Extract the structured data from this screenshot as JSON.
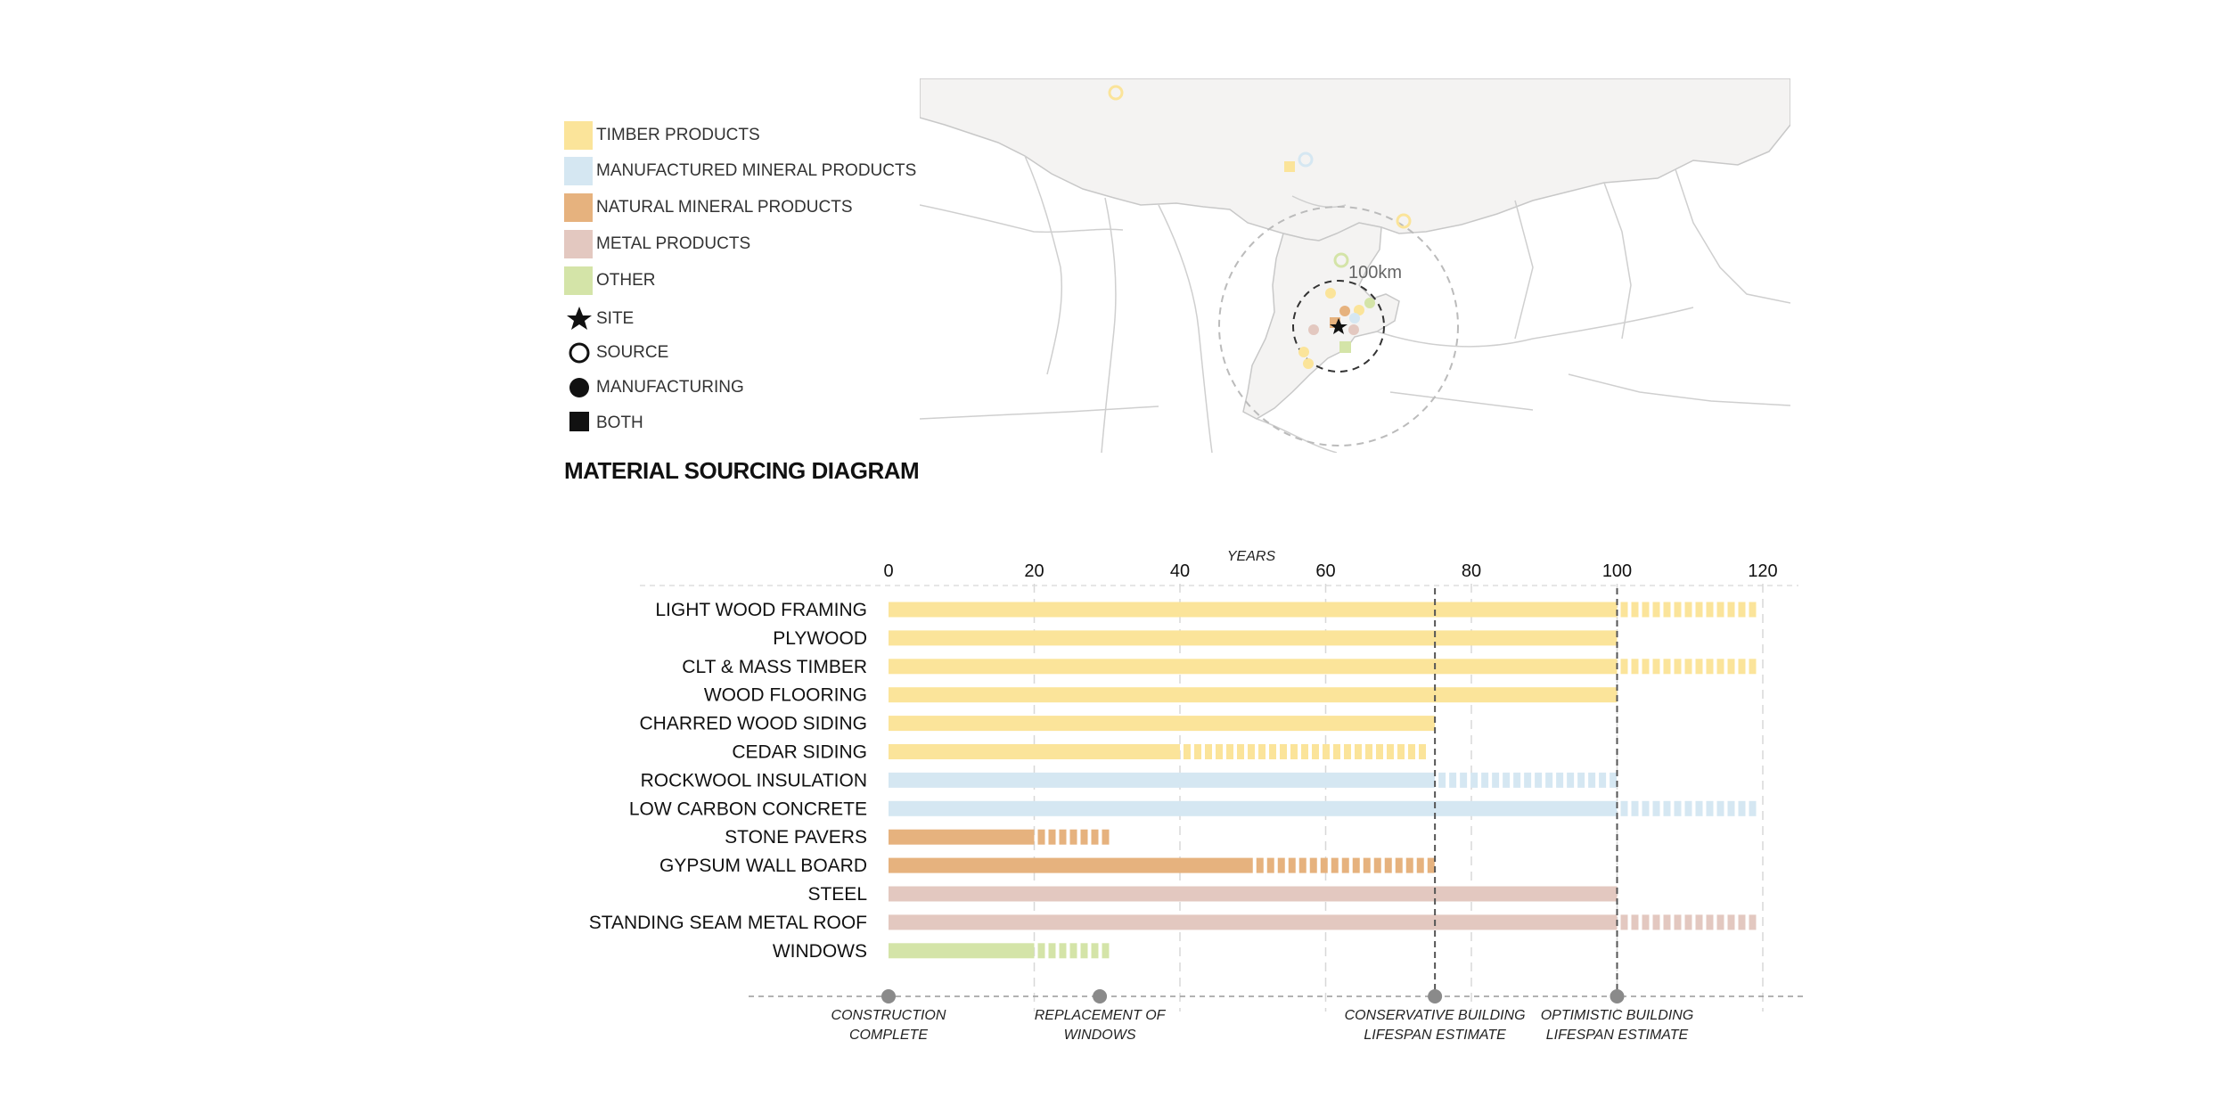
{
  "colors": {
    "timber": "#fbe49a",
    "manufactured_mineral": "#d5e7f2",
    "natural_mineral": "#e6b27e",
    "metal": "#e3c8c0",
    "other": "#d4e4a8"
  },
  "legend": {
    "categories": [
      {
        "label": "TIMBER PRODUCTS",
        "color_key": "timber"
      },
      {
        "label": "MANUFACTURED MINERAL PRODUCTS",
        "color_key": "manufactured_mineral"
      },
      {
        "label": "NATURAL MINERAL PRODUCTS",
        "color_key": "natural_mineral"
      },
      {
        "label": "METAL PRODUCTS",
        "color_key": "metal"
      },
      {
        "label": "OTHER",
        "color_key": "other"
      }
    ],
    "symbols": [
      {
        "label": "SITE",
        "icon": "star-icon"
      },
      {
        "label": "SOURCE",
        "icon": "ring-icon"
      },
      {
        "label": "MANUFACTURING",
        "icon": "dot-icon"
      },
      {
        "label": "BOTH",
        "icon": "square-icon"
      }
    ]
  },
  "diagram_title": "MATERIAL SOURCING DIAGRAM",
  "map": {
    "radius_label": "100km"
  },
  "chart_data": {
    "type": "bar",
    "title": "",
    "xlabel": "YEARS",
    "ylabel": "",
    "xlim": [
      0,
      120
    ],
    "xticks": [
      0,
      20,
      40,
      60,
      80,
      100,
      120
    ],
    "grid": true,
    "reference_lines": [
      75,
      100
    ],
    "rows": [
      {
        "label": "LIGHT WOOD FRAMING",
        "category": "timber",
        "solid_end": 100,
        "dashed_end": 120
      },
      {
        "label": "PLYWOOD",
        "category": "timber",
        "solid_end": 100,
        "dashed_end": null
      },
      {
        "label": "CLT & MASS TIMBER",
        "category": "timber",
        "solid_end": 100,
        "dashed_end": 120
      },
      {
        "label": "WOOD FLOORING",
        "category": "timber",
        "solid_end": 100,
        "dashed_end": null
      },
      {
        "label": "CHARRED WOOD SIDING",
        "category": "timber",
        "solid_end": 75,
        "dashed_end": null
      },
      {
        "label": "CEDAR SIDING",
        "category": "timber",
        "solid_end": 40,
        "dashed_end": 75
      },
      {
        "label": "ROCKWOOL INSULATION",
        "category": "manufactured_mineral",
        "solid_end": 75,
        "dashed_end": 100
      },
      {
        "label": "LOW CARBON CONCRETE",
        "category": "manufactured_mineral",
        "solid_end": 100,
        "dashed_end": 120
      },
      {
        "label": "STONE PAVERS",
        "category": "natural_mineral",
        "solid_end": 20,
        "dashed_end": 31
      },
      {
        "label": "GYPSUM WALL BOARD",
        "category": "natural_mineral",
        "solid_end": 50,
        "dashed_end": 75
      },
      {
        "label": "STEEL",
        "category": "metal",
        "solid_end": 100,
        "dashed_end": null
      },
      {
        "label": "STANDING SEAM METAL ROOF",
        "category": "metal",
        "solid_end": 100,
        "dashed_end": 120
      },
      {
        "label": "WINDOWS",
        "category": "other",
        "solid_end": 20,
        "dashed_end": 31
      }
    ],
    "milestones": [
      {
        "year": 0,
        "lines": [
          "CONSTRUCTION",
          "COMPLETE"
        ]
      },
      {
        "year": 29,
        "lines": [
          "REPLACEMENT OF",
          "WINDOWS"
        ]
      },
      {
        "year": 75,
        "lines": [
          "CONSERVATIVE BUILDING",
          "LIFESPAN ESTIMATE"
        ]
      },
      {
        "year": 100,
        "lines": [
          "OPTIMISTIC BUILDING",
          "LIFESPAN ESTIMATE"
        ]
      }
    ]
  }
}
